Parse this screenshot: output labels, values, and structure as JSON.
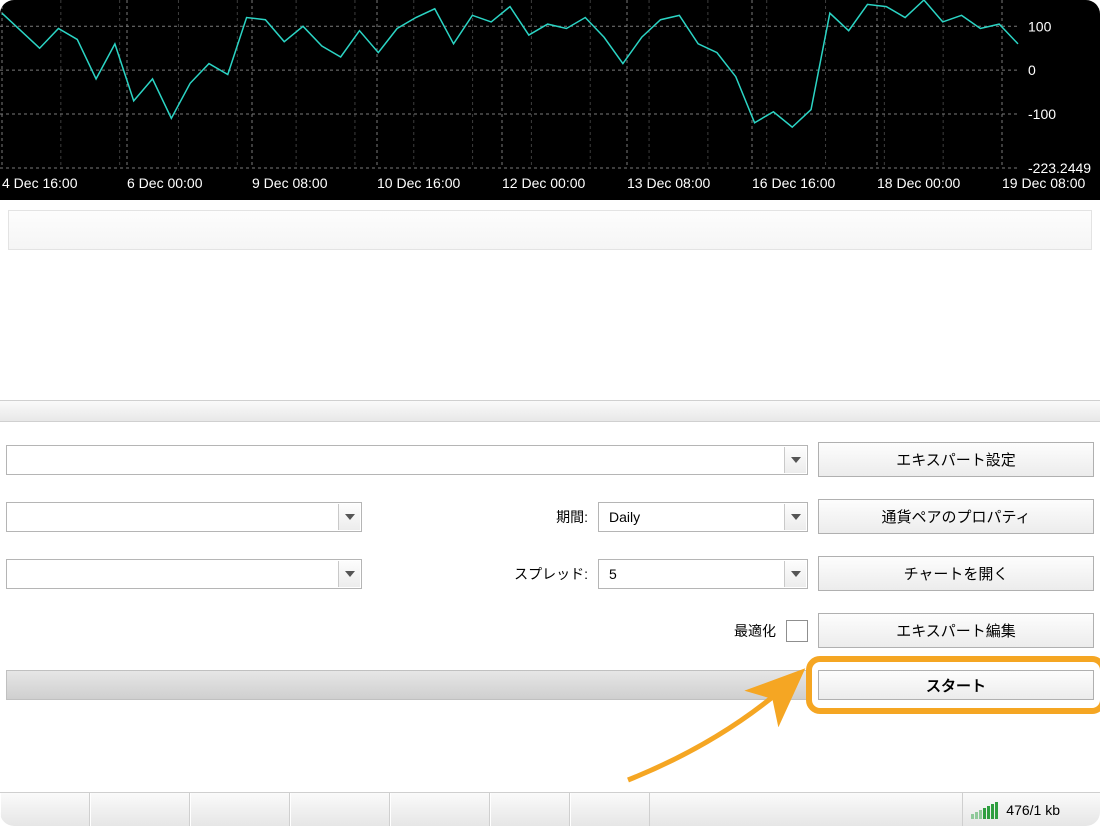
{
  "chart": {
    "type": "line",
    "background_color": "#000000",
    "grid_color": "#7a7a7a",
    "axis_text_color": "#ffffff",
    "line_color": "#2bd4c4",
    "y_ticks": [
      100,
      0.0,
      -100,
      -223.2449
    ],
    "y_range": [
      -223.2449,
      160
    ],
    "x_labels": [
      "4 Dec 16:00",
      "6 Dec 00:00",
      "9 Dec 08:00",
      "10 Dec 16:00",
      "12 Dec 00:00",
      "13 Dec 08:00",
      "16 Dec 16:00",
      "18 Dec 00:00",
      "19 Dec 08:00"
    ],
    "series": [
      130,
      90,
      50,
      95,
      70,
      -20,
      60,
      -70,
      -20,
      -110,
      -30,
      15,
      -10,
      120,
      115,
      65,
      100,
      55,
      30,
      90,
      40,
      95,
      120,
      140,
      60,
      125,
      110,
      145,
      80,
      105,
      95,
      120,
      75,
      15,
      75,
      115,
      125,
      60,
      40,
      -15,
      -120,
      -95,
      -130,
      -90,
      130,
      90,
      150,
      145,
      120,
      160,
      110,
      125,
      95,
      105,
      60
    ]
  },
  "settings": {
    "labels": {
      "period": "期間:",
      "spread": "スプレッド:",
      "optimize": "最適化"
    },
    "period_value": "Daily",
    "spread_value": "5"
  },
  "buttons": {
    "expert_settings": "エキスパート設定",
    "symbol_props": "通貨ペアのプロパティ",
    "open_chart": "チャートを開く",
    "expert_edit": "エキスパート編集",
    "start": "スタート"
  },
  "status": {
    "network": "476/1 kb"
  },
  "highlight_color": "#f5a623"
}
